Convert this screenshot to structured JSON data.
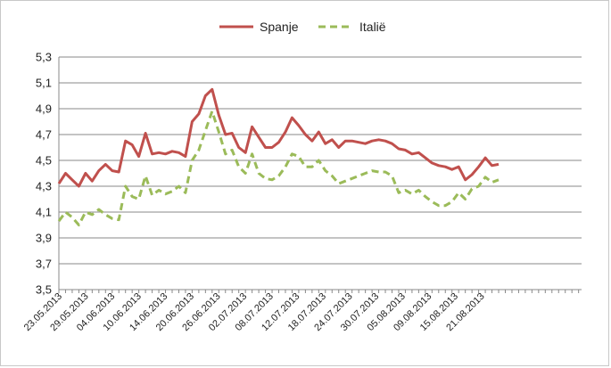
{
  "chart_data": {
    "type": "line",
    "title": "",
    "xlabel": "",
    "ylabel": "",
    "ylim": [
      3.5,
      5.3
    ],
    "yticks": [
      "3,5",
      "3,7",
      "3,9",
      "4,1",
      "4,3",
      "4,5",
      "4,7",
      "4,9",
      "5,1",
      "5,3"
    ],
    "ytick_values": [
      3.5,
      3.7,
      3.9,
      4.1,
      4.3,
      4.5,
      4.7,
      4.9,
      5.1,
      5.3
    ],
    "grid": "horizontal",
    "legend_position": "top",
    "xtick_labels": [
      "23.05.2013",
      "29.05.2013",
      "04.06.2013",
      "10.06.2013",
      "14.06.2013",
      "20.06.2013",
      "26.06.2013",
      "02.07.2013",
      "08.07.2013",
      "12.07.2013",
      "18.07.2013",
      "24.07.2013",
      "30.07.2013",
      "05.08.2013",
      "09.08.2013",
      "15.08.2013",
      "21.08.2013"
    ],
    "series": [
      {
        "name": "Spanje",
        "color": "#c0504d",
        "style": "solid",
        "values": [
          4.32,
          4.4,
          4.35,
          4.3,
          4.4,
          4.34,
          4.42,
          4.47,
          4.42,
          4.41,
          4.65,
          4.62,
          4.53,
          4.71,
          4.55,
          4.56,
          4.55,
          4.57,
          4.56,
          4.53,
          4.8,
          4.86,
          5.0,
          5.05,
          4.85,
          4.7,
          4.71,
          4.6,
          4.56,
          4.76,
          4.68,
          4.6,
          4.6,
          4.64,
          4.72,
          4.83,
          4.77,
          4.7,
          4.65,
          4.72,
          4.63,
          4.66,
          4.6,
          4.65,
          4.65,
          4.64,
          4.63,
          4.65,
          4.66,
          4.65,
          4.63,
          4.59,
          4.58,
          4.55,
          4.56,
          4.52,
          4.48,
          4.46,
          4.45,
          4.43,
          4.45,
          4.35,
          4.39,
          4.45,
          4.52,
          4.46,
          4.47
        ]
      },
      {
        "name": "Italië",
        "color": "#9bbb59",
        "style": "dashed",
        "values": [
          4.03,
          4.1,
          4.06,
          4.0,
          4.1,
          4.08,
          4.12,
          4.08,
          4.05,
          4.04,
          4.3,
          4.22,
          4.2,
          4.38,
          4.23,
          4.27,
          4.24,
          4.26,
          4.3,
          4.25,
          4.5,
          4.58,
          4.73,
          4.88,
          4.72,
          4.55,
          4.58,
          4.45,
          4.4,
          4.55,
          4.4,
          4.36,
          4.35,
          4.38,
          4.45,
          4.55,
          4.53,
          4.45,
          4.45,
          4.5,
          4.42,
          4.38,
          4.32,
          4.34,
          4.36,
          4.38,
          4.4,
          4.42,
          4.41,
          4.41,
          4.38,
          4.25,
          4.27,
          4.24,
          4.27,
          4.22,
          4.18,
          4.15,
          4.15,
          4.18,
          4.25,
          4.2,
          4.28,
          4.3,
          4.37,
          4.33,
          4.35
        ]
      }
    ]
  }
}
